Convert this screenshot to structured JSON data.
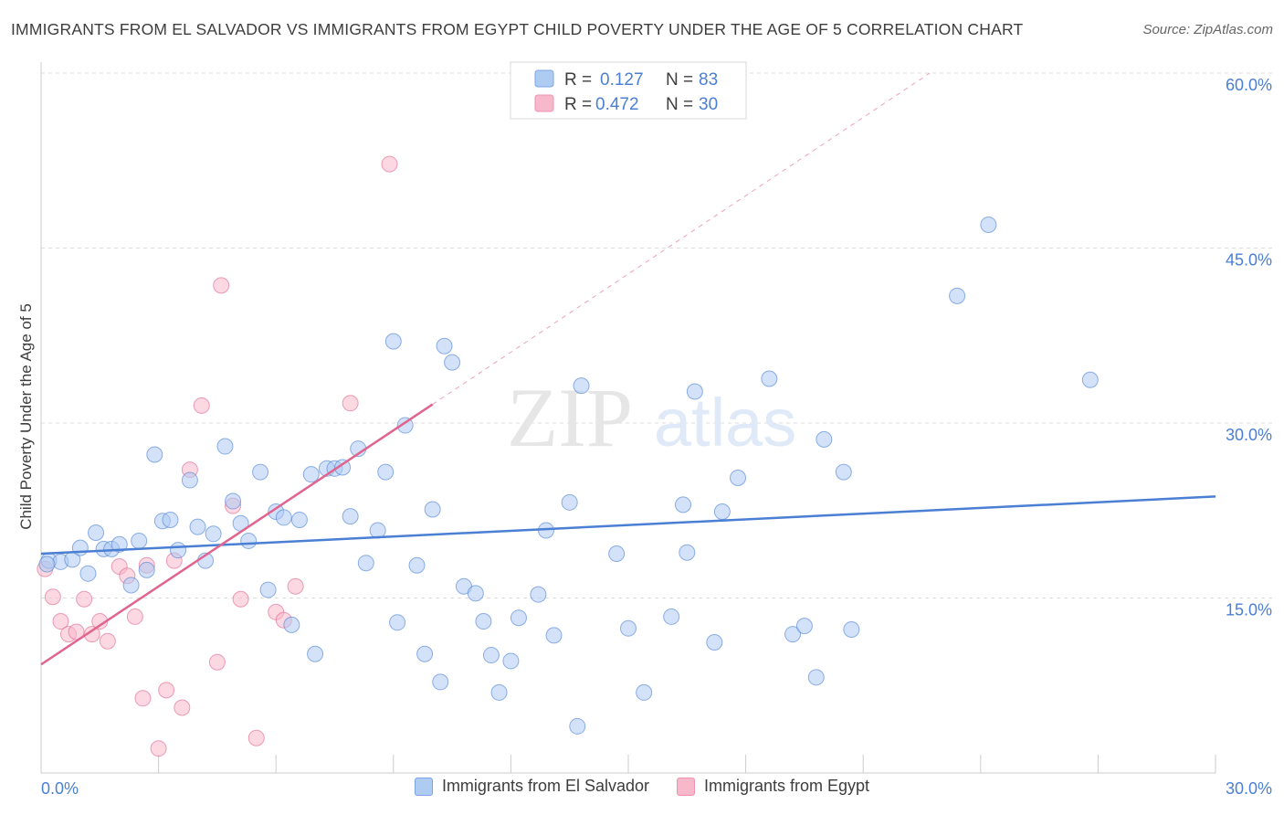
{
  "header": {
    "title": "IMMIGRANTS FROM EL SALVADOR VS IMMIGRANTS FROM EGYPT CHILD POVERTY UNDER THE AGE OF 5 CORRELATION CHART",
    "source": "Source: ZipAtlas.com"
  },
  "watermark": {
    "zip": "ZIP",
    "atlas": "atlas"
  },
  "chart_data": {
    "type": "scatter",
    "ylabel": "Child Poverty Under the Age of 5",
    "xlim": [
      0,
      30
    ],
    "ylim": [
      0,
      60
    ],
    "x_tick_labels": [
      "0.0%",
      "30.0%"
    ],
    "y_tick_labels": [
      "15.0%",
      "30.0%",
      "45.0%",
      "60.0%"
    ],
    "y_ticks": [
      15,
      30,
      45,
      60
    ],
    "grid": "horizontal dashed",
    "legend_position": "top-center",
    "colors": {
      "blue": "#4a7fd4",
      "blue_fill": "#aecbf2",
      "pink": "#e0648e",
      "pink_fill": "#f7b8cb",
      "axis_text": "#4a7fd4"
    },
    "series": [
      {
        "name": "Immigrants from El Salvador",
        "r": "0.127",
        "n": "83",
        "color": "blue",
        "trend": {
          "x": [
            0,
            30
          ],
          "y": [
            18.8,
            23.7
          ]
        },
        "points": [
          [
            0.2,
            18.2
          ],
          [
            0.5,
            18.1
          ],
          [
            0.8,
            18.3
          ],
          [
            1.0,
            19.3
          ],
          [
            1.2,
            17.1
          ],
          [
            1.4,
            20.6
          ],
          [
            1.6,
            19.2
          ],
          [
            1.8,
            19.2
          ],
          [
            2.0,
            19.6
          ],
          [
            2.3,
            16.1
          ],
          [
            2.5,
            19.9
          ],
          [
            2.7,
            17.4
          ],
          [
            2.9,
            27.3
          ],
          [
            3.1,
            21.6
          ],
          [
            3.3,
            21.7
          ],
          [
            3.5,
            19.1
          ],
          [
            3.8,
            25.1
          ],
          [
            4.0,
            21.1
          ],
          [
            4.2,
            18.2
          ],
          [
            4.4,
            20.5
          ],
          [
            4.7,
            28.0
          ],
          [
            4.9,
            23.3
          ],
          [
            5.1,
            21.4
          ],
          [
            5.3,
            19.9
          ],
          [
            5.6,
            25.8
          ],
          [
            5.8,
            15.7
          ],
          [
            6.0,
            22.4
          ],
          [
            6.2,
            21.9
          ],
          [
            6.4,
            12.7
          ],
          [
            6.6,
            21.7
          ],
          [
            6.9,
            25.6
          ],
          [
            7.0,
            10.2
          ],
          [
            7.3,
            26.1
          ],
          [
            7.5,
            26.1
          ],
          [
            7.7,
            26.2
          ],
          [
            7.9,
            22.0
          ],
          [
            8.1,
            27.8
          ],
          [
            8.3,
            18.0
          ],
          [
            8.6,
            20.8
          ],
          [
            8.8,
            25.8
          ],
          [
            9.0,
            37.0
          ],
          [
            9.1,
            12.9
          ],
          [
            9.3,
            29.8
          ],
          [
            9.6,
            17.8
          ],
          [
            9.8,
            10.2
          ],
          [
            10.0,
            22.6
          ],
          [
            10.2,
            7.8
          ],
          [
            10.3,
            36.6
          ],
          [
            10.5,
            35.2
          ],
          [
            10.8,
            16.0
          ],
          [
            11.1,
            15.4
          ],
          [
            11.3,
            13.0
          ],
          [
            11.5,
            10.1
          ],
          [
            11.7,
            6.9
          ],
          [
            12.0,
            9.6
          ],
          [
            12.2,
            13.3
          ],
          [
            12.7,
            15.3
          ],
          [
            12.9,
            20.8
          ],
          [
            13.1,
            11.8
          ],
          [
            13.5,
            23.2
          ],
          [
            13.7,
            4.0
          ],
          [
            13.8,
            33.2
          ],
          [
            14.7,
            18.8
          ],
          [
            15.0,
            12.4
          ],
          [
            15.4,
            6.9
          ],
          [
            16.1,
            13.4
          ],
          [
            16.4,
            23.0
          ],
          [
            16.5,
            18.9
          ],
          [
            16.7,
            32.7
          ],
          [
            17.2,
            11.2
          ],
          [
            17.4,
            22.4
          ],
          [
            17.8,
            25.3
          ],
          [
            18.6,
            33.8
          ],
          [
            19.2,
            11.9
          ],
          [
            19.5,
            12.6
          ],
          [
            19.8,
            8.2
          ],
          [
            20.0,
            28.6
          ],
          [
            20.5,
            25.8
          ],
          [
            20.7,
            12.3
          ],
          [
            23.4,
            40.9
          ],
          [
            24.2,
            47.0
          ],
          [
            26.8,
            33.7
          ],
          [
            0.15,
            17.9
          ]
        ]
      },
      {
        "name": "Immigrants from Egypt",
        "r": "0.472",
        "n": "30",
        "color": "pink",
        "trend": {
          "x": [
            0,
            10
          ],
          "y": [
            9.3,
            31.6
          ]
        },
        "trend_dashed": {
          "x": [
            10,
            22.7
          ],
          "y": [
            31.6,
            60
          ]
        },
        "points": [
          [
            0.1,
            17.5
          ],
          [
            0.3,
            15.1
          ],
          [
            0.5,
            13.0
          ],
          [
            0.7,
            11.9
          ],
          [
            0.9,
            12.1
          ],
          [
            1.1,
            14.9
          ],
          [
            1.3,
            11.9
          ],
          [
            1.5,
            13.0
          ],
          [
            1.7,
            11.3
          ],
          [
            2.0,
            17.7
          ],
          [
            2.2,
            16.9
          ],
          [
            2.4,
            13.4
          ],
          [
            2.6,
            6.4
          ],
          [
            2.7,
            17.8
          ],
          [
            3.0,
            2.1
          ],
          [
            3.2,
            7.1
          ],
          [
            3.4,
            18.2
          ],
          [
            3.6,
            5.6
          ],
          [
            3.8,
            26.0
          ],
          [
            4.1,
            31.5
          ],
          [
            4.5,
            9.5
          ],
          [
            4.6,
            41.8
          ],
          [
            4.9,
            22.9
          ],
          [
            5.1,
            14.9
          ],
          [
            5.5,
            3.0
          ],
          [
            6.0,
            13.8
          ],
          [
            6.2,
            13.1
          ],
          [
            6.5,
            16.0
          ],
          [
            7.9,
            31.7
          ],
          [
            8.9,
            52.2
          ]
        ]
      }
    ]
  }
}
